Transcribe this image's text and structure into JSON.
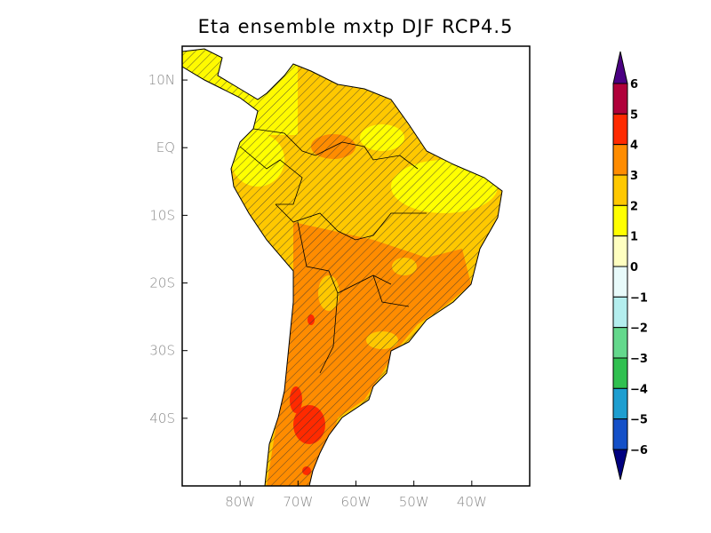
{
  "title": "Eta ensemble mxtp DJF RCP4.5",
  "map": {
    "lon_range": [
      -90,
      -30
    ],
    "lat_range": [
      -50,
      15
    ],
    "lat_ticks": [
      {
        "value": 10,
        "label": "10N"
      },
      {
        "value": 0,
        "label": "EQ"
      },
      {
        "value": -10,
        "label": "10S"
      },
      {
        "value": -20,
        "label": "20S"
      },
      {
        "value": -30,
        "label": "30S"
      },
      {
        "value": -40,
        "label": "40S"
      }
    ],
    "lon_ticks": [
      {
        "value": -80,
        "label": "80W"
      },
      {
        "value": -70,
        "label": "70W"
      },
      {
        "value": -60,
        "label": "60W"
      },
      {
        "value": -50,
        "label": "50W"
      },
      {
        "value": -40,
        "label": "40W"
      }
    ],
    "hatching": "significance"
  },
  "colorbar": {
    "labels": [
      "6",
      "5",
      "4",
      "3",
      "2",
      "1",
      "0",
      "−1",
      "−2",
      "−3",
      "−4",
      "−5",
      "−6"
    ],
    "colors": [
      "#b0003a",
      "#ff2a00",
      "#ff8c00",
      "#ffc800",
      "#ffff00",
      "#ffffc0",
      "#e8fafa",
      "#b4eeee",
      "#64d88c",
      "#30c050",
      "#1e9ed0",
      "#1450c8"
    ],
    "over_color": "#4b0082",
    "under_color": "#000080"
  }
}
